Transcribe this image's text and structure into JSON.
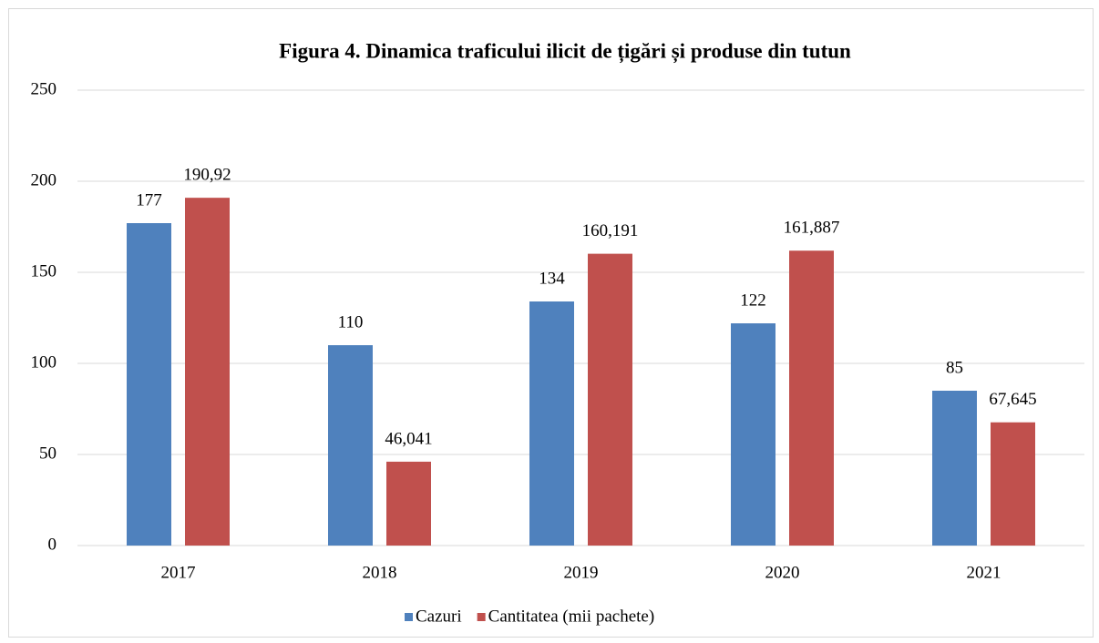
{
  "chart_data": {
    "type": "bar",
    "title": "Figura 4. Dinamica traficului ilicit de țigări și produse din tutun",
    "categories": [
      "2017",
      "2018",
      "2019",
      "2020",
      "2021"
    ],
    "series": [
      {
        "name": "Cazuri",
        "color": "#4f81bd",
        "values": [
          177,
          110,
          134,
          122,
          85
        ]
      },
      {
        "name": "Cantitatea (mii pachete)",
        "color": "#c0504d",
        "values": [
          190.92,
          46.041,
          160.191,
          161.887,
          67.645
        ],
        "value_labels": [
          "190,92",
          "46,041",
          "160,191",
          "161,887",
          "67,645"
        ]
      }
    ],
    "ylim": [
      0,
      250
    ],
    "yticks": [
      0,
      50,
      100,
      150,
      200,
      250
    ],
    "grid": true,
    "legend": "bottom"
  }
}
